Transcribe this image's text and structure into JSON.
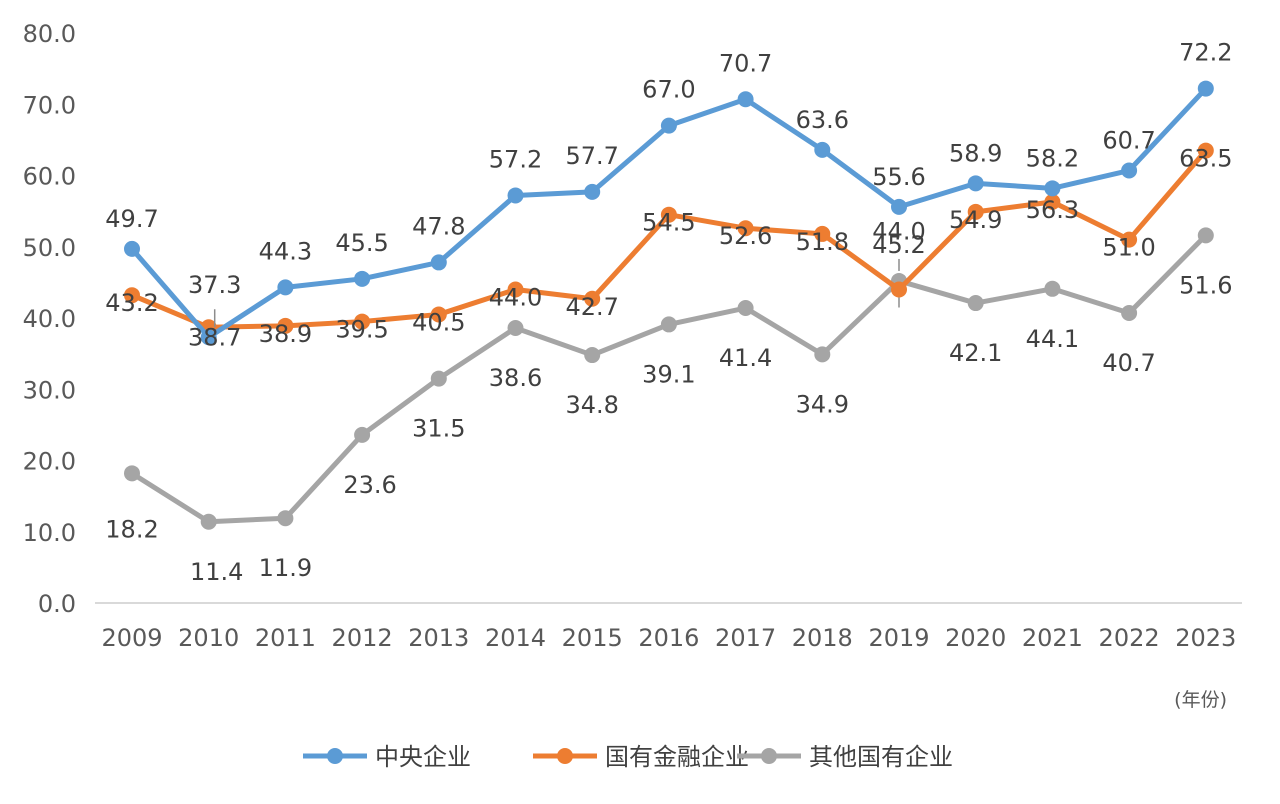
{
  "chart_data": {
    "type": "line",
    "title": "",
    "xlabel": "",
    "ylabel": "",
    "x_unit_label": "(年份)",
    "ylim": [
      0,
      80
    ],
    "y_ticks": [
      "0.0",
      "10.0",
      "20.0",
      "30.0",
      "40.0",
      "50.0",
      "60.0",
      "70.0",
      "80.0"
    ],
    "categories": [
      "2009",
      "2010",
      "2011",
      "2012",
      "2013",
      "2014",
      "2015",
      "2016",
      "2017",
      "2018",
      "2019",
      "2020",
      "2021",
      "2022",
      "2023"
    ],
    "grid": false,
    "legend_position": "bottom",
    "series": [
      {
        "name": "中央企业",
        "color": "#5B9BD5",
        "values": [
          49.7,
          37.3,
          44.3,
          45.5,
          47.8,
          57.2,
          57.7,
          67.0,
          70.7,
          63.6,
          55.6,
          58.9,
          58.2,
          60.7,
          72.2
        ],
        "labels": [
          "49.7",
          "37.3",
          "44.3",
          "45.5",
          "47.8",
          "57.2",
          "57.7",
          "67.0",
          "70.7",
          "63.6",
          "55.6",
          "58.9",
          "58.2",
          "60.7",
          "72.2"
        ]
      },
      {
        "name": "国有金融企业",
        "color": "#ED7D31",
        "values": [
          43.2,
          38.7,
          38.9,
          39.5,
          40.5,
          44.0,
          42.7,
          54.5,
          52.6,
          51.8,
          44.0,
          54.9,
          56.3,
          51.0,
          63.5
        ],
        "labels": [
          "43.2",
          "38.7",
          "38.9",
          "39.5",
          "40.5",
          "44.0",
          "42.7",
          "54.5",
          "52.6",
          "51.8",
          "44.0",
          "54.9",
          "56.3",
          "51.0",
          "63.5"
        ]
      },
      {
        "name": "其他国有企业",
        "color": "#A5A5A5",
        "values": [
          18.2,
          11.4,
          11.9,
          23.6,
          31.5,
          38.6,
          34.8,
          39.1,
          41.4,
          34.9,
          45.2,
          42.1,
          44.1,
          40.7,
          51.6
        ],
        "labels": [
          "18.2",
          "11.4",
          "11.9",
          "23.6",
          "31.5",
          "38.6",
          "34.8",
          "39.1",
          "41.4",
          "34.9",
          "45.2",
          "42.1",
          "44.1",
          "40.7",
          "51.6"
        ]
      }
    ]
  }
}
